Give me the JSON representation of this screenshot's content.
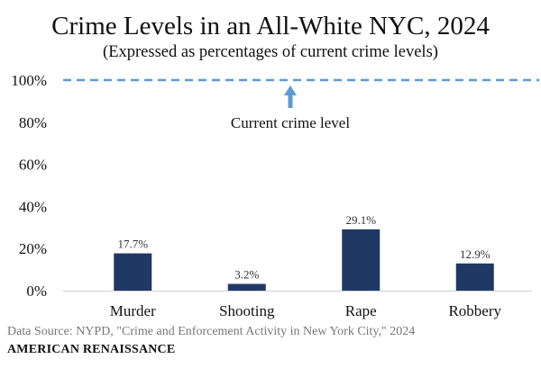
{
  "chart_data": {
    "type": "bar",
    "title": "Crime Levels in an All-White NYC, 2024",
    "subtitle": "(Expressed as percentages of current crime levels)",
    "categories": [
      "Murder",
      "Shooting",
      "Rape",
      "Robbery"
    ],
    "values": [
      17.7,
      3.2,
      29.1,
      12.9
    ],
    "data_labels": [
      "17.7%",
      "3.2%",
      "29.1%",
      "12.9%"
    ],
    "y_ticks": [
      "0%",
      "20%",
      "40%",
      "60%",
      "80%",
      "100%"
    ],
    "y_tick_values": [
      0,
      20,
      40,
      60,
      80,
      100
    ],
    "ylim": [
      0,
      100
    ],
    "xlabel": "",
    "ylabel": "",
    "grid": false,
    "reference_line": {
      "value": 100,
      "label": "Current crime level"
    },
    "colors": {
      "bar": "#1f3864",
      "reference_line": "#5b9bd5",
      "arrow": "#5b9bd5"
    }
  },
  "footer": {
    "source": "Data Source: NYPD, \"Crime and Enforcement Activity in New York City,\" 2024",
    "brand": "AMERICAN RENAISSANCE"
  }
}
